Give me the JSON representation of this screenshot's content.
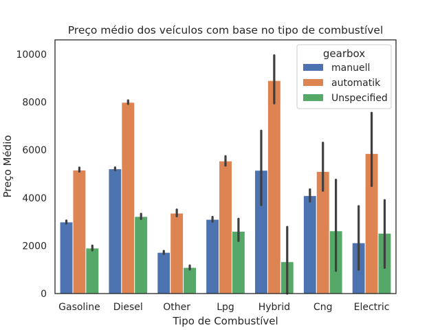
{
  "chart_data": {
    "type": "bar",
    "title": "Preço médio dos veículos com base no tipo de combustível",
    "xlabel": "Tipo de Combustível",
    "ylabel": "Preço Médio",
    "categories": [
      "Gasoline",
      "Diesel",
      "Other",
      "Lpg",
      "Hybrid",
      "Cng",
      "Electric"
    ],
    "ylim": [
      0,
      10600
    ],
    "yticks": [
      0,
      2000,
      4000,
      6000,
      8000,
      10000
    ],
    "grid": false,
    "legend": {
      "title": "gearbox",
      "placement": "top-right"
    },
    "series": [
      {
        "name": "manuell",
        "color": "#4c72b0",
        "values": [
          2990,
          5210,
          1720,
          3100,
          5150,
          4090,
          2120
        ],
        "ci": [
          [
            2930,
            3050
          ],
          [
            5160,
            5270
          ],
          [
            1660,
            1780
          ],
          [
            3010,
            3200
          ],
          [
            3700,
            6800
          ],
          [
            3850,
            4350
          ],
          [
            1000,
            3650
          ]
        ]
      },
      {
        "name": "automatik",
        "color": "#dd8452",
        "values": [
          5160,
          7990,
          3360,
          5540,
          8900,
          5100,
          5850
        ],
        "ci": [
          [
            5100,
            5260
          ],
          [
            7930,
            8070
          ],
          [
            3230,
            3510
          ],
          [
            5350,
            5740
          ],
          [
            7950,
            9950
          ],
          [
            4300,
            6300
          ],
          [
            4500,
            7550
          ]
        ]
      },
      {
        "name": "Unspecified",
        "color": "#55a868",
        "values": [
          1900,
          3220,
          1090,
          2600,
          1330,
          2620,
          2520
        ],
        "ci": [
          [
            1810,
            2000
          ],
          [
            3120,
            3330
          ],
          [
            1010,
            1170
          ],
          [
            2200,
            3120
          ],
          [
            0,
            2780
          ],
          [
            950,
            4750
          ],
          [
            1080,
            3900
          ]
        ]
      }
    ]
  }
}
